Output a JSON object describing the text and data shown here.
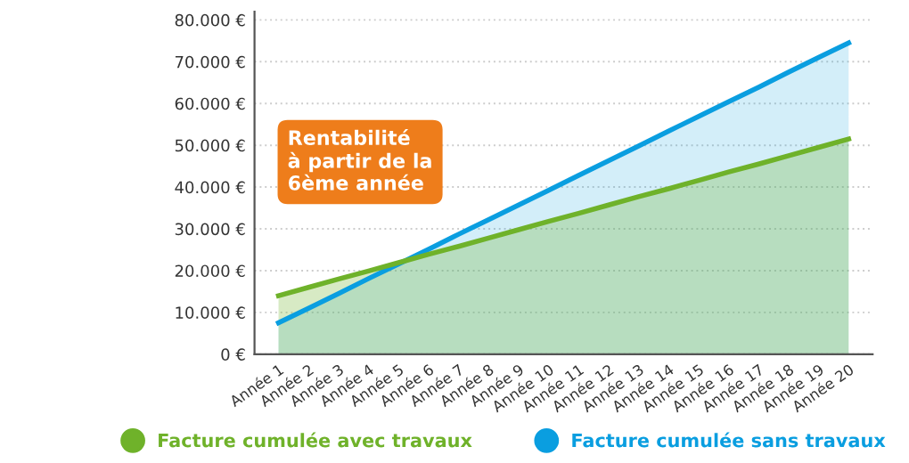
{
  "chart_data": {
    "type": "area",
    "categories": [
      "Année 1",
      "Année 2",
      "Année 3",
      "Année 4",
      "Année 5",
      "Année 6",
      "Année 7",
      "Année 8",
      "Année 9",
      "Année 10",
      "Année 11",
      "Année 12",
      "Année 13",
      "Année 14",
      "Année 15",
      "Année 16",
      "Année 17",
      "Année 18",
      "Année 19",
      "Année 20"
    ],
    "series": [
      {
        "name": "Facture cumulée sans travaux",
        "color": "#0a9ee0",
        "values": [
          7500,
          11000,
          14500,
          18100,
          21600,
          25100,
          28700,
          32200,
          35700,
          39200,
          42800,
          46300,
          49800,
          53400,
          56900,
          60400,
          63900,
          67500,
          71000,
          74500
        ]
      },
      {
        "name": "Facture cumulée avec travaux",
        "color": "#6fb22a",
        "values": [
          14000,
          16000,
          18000,
          19900,
          21900,
          23900,
          25800,
          27800,
          29800,
          31800,
          33700,
          35700,
          37700,
          39600,
          41600,
          43600,
          45500,
          47500,
          49500,
          51500
        ]
      }
    ],
    "ylim": [
      0,
      82000
    ],
    "yticks": [
      {
        "value": 0,
        "label": "0 €"
      },
      {
        "value": 10000,
        "label": "10.000 €"
      },
      {
        "value": 20000,
        "label": "20.000 €"
      },
      {
        "value": 30000,
        "label": "30.000 €"
      },
      {
        "value": 40000,
        "label": "40.000 €"
      },
      {
        "value": 50000,
        "label": "50.000 €"
      },
      {
        "value": 60000,
        "label": "60.000 €"
      },
      {
        "value": 70000,
        "label": "70.000 €"
      },
      {
        "value": 80000,
        "label": "80.000 €"
      }
    ],
    "grid": "y",
    "legend": "bottom",
    "annotations": [
      "Rentabilité\nà partir de la\n6ème année"
    ]
  }
}
